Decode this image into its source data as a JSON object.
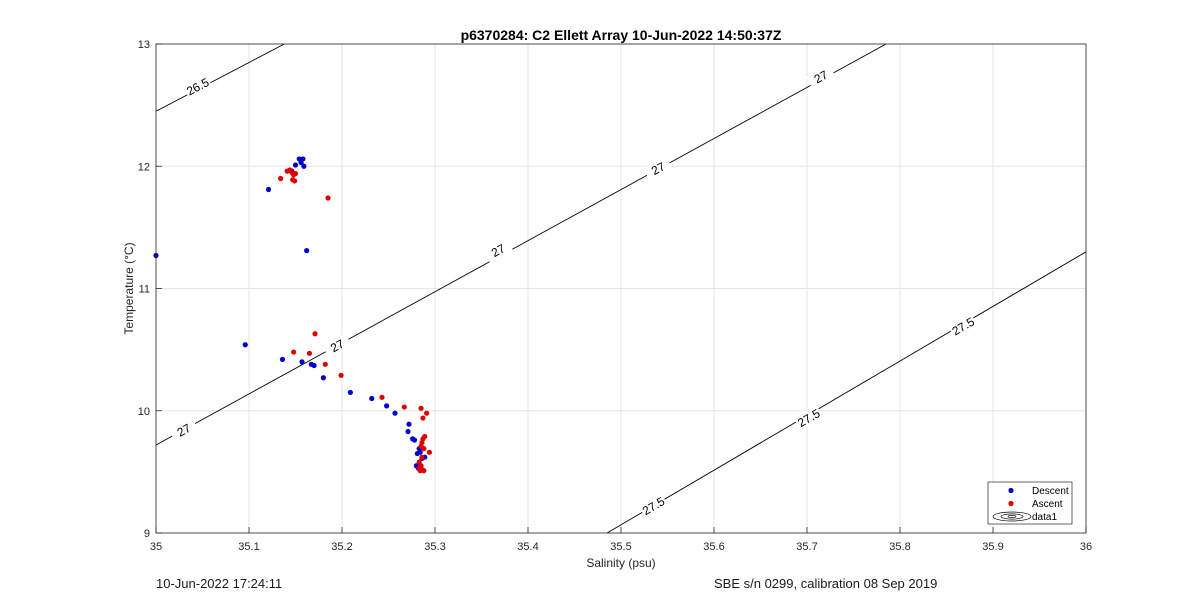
{
  "chart_data": {
    "type": "scatter",
    "title": "p6370284: C2 Ellett Array 10-Jun-2022 14:50:37Z",
    "xlabel": "Salinity (psu)",
    "ylabel": "Temperature (°C)",
    "xlim": [
      35,
      36
    ],
    "ylim": [
      9,
      13
    ],
    "x_ticks": [
      "35",
      "35.1",
      "35.2",
      "35.3",
      "35.4",
      "35.5",
      "35.6",
      "35.7",
      "35.8",
      "35.9",
      "36"
    ],
    "y_ticks": [
      "9",
      "10",
      "11",
      "12",
      "13"
    ],
    "grid": true,
    "legend_position": "bottom-right",
    "series": [
      {
        "name": "Descent",
        "color": "#0000cc",
        "marker": "dot",
        "points": [
          [
            35.0,
            11.27
          ],
          [
            35.121,
            11.81
          ],
          [
            35.146,
            11.96
          ],
          [
            35.15,
            12.01
          ],
          [
            35.154,
            12.06
          ],
          [
            35.158,
            12.06
          ],
          [
            35.156,
            12.03
          ],
          [
            35.159,
            12.0
          ],
          [
            35.162,
            11.31
          ],
          [
            35.096,
            10.54
          ],
          [
            35.136,
            10.42
          ],
          [
            35.157,
            10.4
          ],
          [
            35.167,
            10.38
          ],
          [
            35.17,
            10.37
          ],
          [
            35.18,
            10.27
          ],
          [
            35.209,
            10.15
          ],
          [
            35.232,
            10.1
          ],
          [
            35.248,
            10.04
          ],
          [
            35.257,
            9.98
          ],
          [
            35.272,
            9.89
          ],
          [
            35.271,
            9.83
          ],
          [
            35.276,
            9.77
          ],
          [
            35.278,
            9.76
          ],
          [
            35.283,
            9.69
          ],
          [
            35.284,
            9.66
          ],
          [
            35.281,
            9.65
          ],
          [
            35.286,
            9.61
          ],
          [
            35.289,
            9.62
          ],
          [
            35.28,
            9.55
          ],
          [
            35.282,
            9.53
          ]
        ]
      },
      {
        "name": "Ascent",
        "color": "#dd0000",
        "marker": "dot",
        "points": [
          [
            35.134,
            11.9
          ],
          [
            35.141,
            11.96
          ],
          [
            35.144,
            11.97
          ],
          [
            35.146,
            11.95
          ],
          [
            35.148,
            11.93
          ],
          [
            35.15,
            11.94
          ],
          [
            35.147,
            11.89
          ],
          [
            35.149,
            11.88
          ],
          [
            35.185,
            11.74
          ],
          [
            35.171,
            10.63
          ],
          [
            35.148,
            10.48
          ],
          [
            35.165,
            10.47
          ],
          [
            35.182,
            10.38
          ],
          [
            35.199,
            10.29
          ],
          [
            35.243,
            10.11
          ],
          [
            35.267,
            10.03
          ],
          [
            35.285,
            10.02
          ],
          [
            35.291,
            9.98
          ],
          [
            35.287,
            9.94
          ],
          [
            35.289,
            9.79
          ],
          [
            35.287,
            9.77
          ],
          [
            35.286,
            9.74
          ],
          [
            35.285,
            9.71
          ],
          [
            35.288,
            9.69
          ],
          [
            35.294,
            9.66
          ],
          [
            35.286,
            9.62
          ],
          [
            35.283,
            9.58
          ],
          [
            35.285,
            9.55
          ],
          [
            35.283,
            9.53
          ],
          [
            35.286,
            9.52
          ],
          [
            35.288,
            9.51
          ],
          [
            35.284,
            9.51
          ]
        ]
      }
    ],
    "legend_entries": [
      "Descent",
      "Ascent",
      "data1"
    ],
    "contour_label_text": [
      "26.5",
      "27",
      "27",
      "27",
      "27",
      "27",
      "27.5",
      "27.5",
      "27.5"
    ],
    "contours": [
      {
        "name": "26.5",
        "points": [
          [
            35.0,
            12.45
          ],
          [
            35.138,
            13.0
          ]
        ],
        "labels": [
          [
            35.045,
            12.65
          ]
        ]
      },
      {
        "name": "27",
        "points": [
          [
            35.0,
            9.72
          ],
          [
            35.785,
            13.0
          ]
        ],
        "labels": [
          [
            35.03,
            9.84
          ],
          [
            35.195,
            10.53
          ],
          [
            35.368,
            11.31
          ],
          [
            35.54,
            11.98
          ],
          [
            35.715,
            12.73
          ]
        ]
      },
      {
        "name": "27.5",
        "points": [
          [
            35.485,
            9.0
          ],
          [
            36.0,
            11.3
          ]
        ],
        "labels": [
          [
            35.535,
            9.22
          ],
          [
            35.702,
            9.94
          ],
          [
            35.868,
            10.69
          ]
        ]
      }
    ]
  },
  "footer": {
    "left": "10-Jun-2022 17:24:11",
    "right": "SBE s/n 0299, calibration 08 Sep 2019"
  }
}
